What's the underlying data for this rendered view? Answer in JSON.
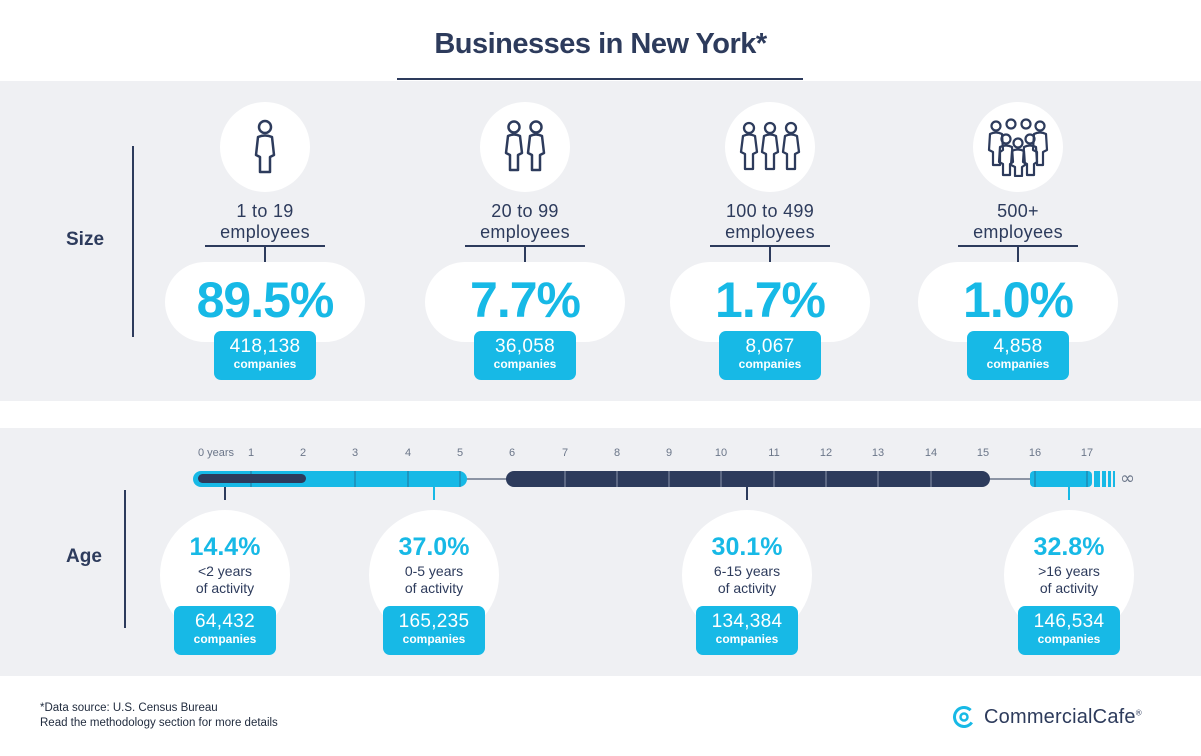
{
  "title": "Businesses in New York*",
  "size_section": {
    "label": "Size",
    "groups": [
      {
        "icon": "single-person-icon",
        "label_line1": "1 to 19",
        "label_line2": "employees",
        "percent": "89.5%",
        "count": "418,138",
        "unit": "companies"
      },
      {
        "icon": "two-people-icon",
        "label_line1": "20 to 99",
        "label_line2": "employees",
        "percent": "7.7%",
        "count": "36,058",
        "unit": "companies"
      },
      {
        "icon": "three-people-icon",
        "label_line1": "100 to 499",
        "label_line2": "employees",
        "percent": "1.7%",
        "count": "8,067",
        "unit": "companies"
      },
      {
        "icon": "crowd-icon",
        "label_line1": "500+",
        "label_line2": "employees",
        "percent": "1.0%",
        "count": "4,858",
        "unit": "companies"
      }
    ]
  },
  "age_section": {
    "label": "Age",
    "axis_ticks": [
      "0 years",
      "1",
      "2",
      "3",
      "4",
      "5",
      "6",
      "7",
      "8",
      "9",
      "10",
      "11",
      "12",
      "13",
      "14",
      "15",
      "16",
      "17"
    ],
    "infinity_symbol": "∞",
    "groups": [
      {
        "percent": "14.4%",
        "desc_line1": "<2 years",
        "desc_line2": "of activity",
        "count": "64,432",
        "unit": "companies"
      },
      {
        "percent": "37.0%",
        "desc_line1": "0-5 years",
        "desc_line2": "of activity",
        "count": "165,235",
        "unit": "companies"
      },
      {
        "percent": "30.1%",
        "desc_line1": "6-15 years",
        "desc_line2": "of activity",
        "count": "134,384",
        "unit": "companies"
      },
      {
        "percent": "32.8%",
        "desc_line1": ">16 years",
        "desc_line2": "of activity",
        "count": "146,534",
        "unit": "companies"
      }
    ]
  },
  "footnote": {
    "line1": "*Data source: U.S. Census Bureau",
    "line2": "Read the methodology section for more details"
  },
  "brand": {
    "name": "CommercialCafe",
    "reg": "®",
    "icon": "commercialcafe-logo-icon"
  },
  "colors": {
    "navy": "#2d3b5c",
    "cyan": "#17b9e6",
    "band": "#eff0f3"
  }
}
